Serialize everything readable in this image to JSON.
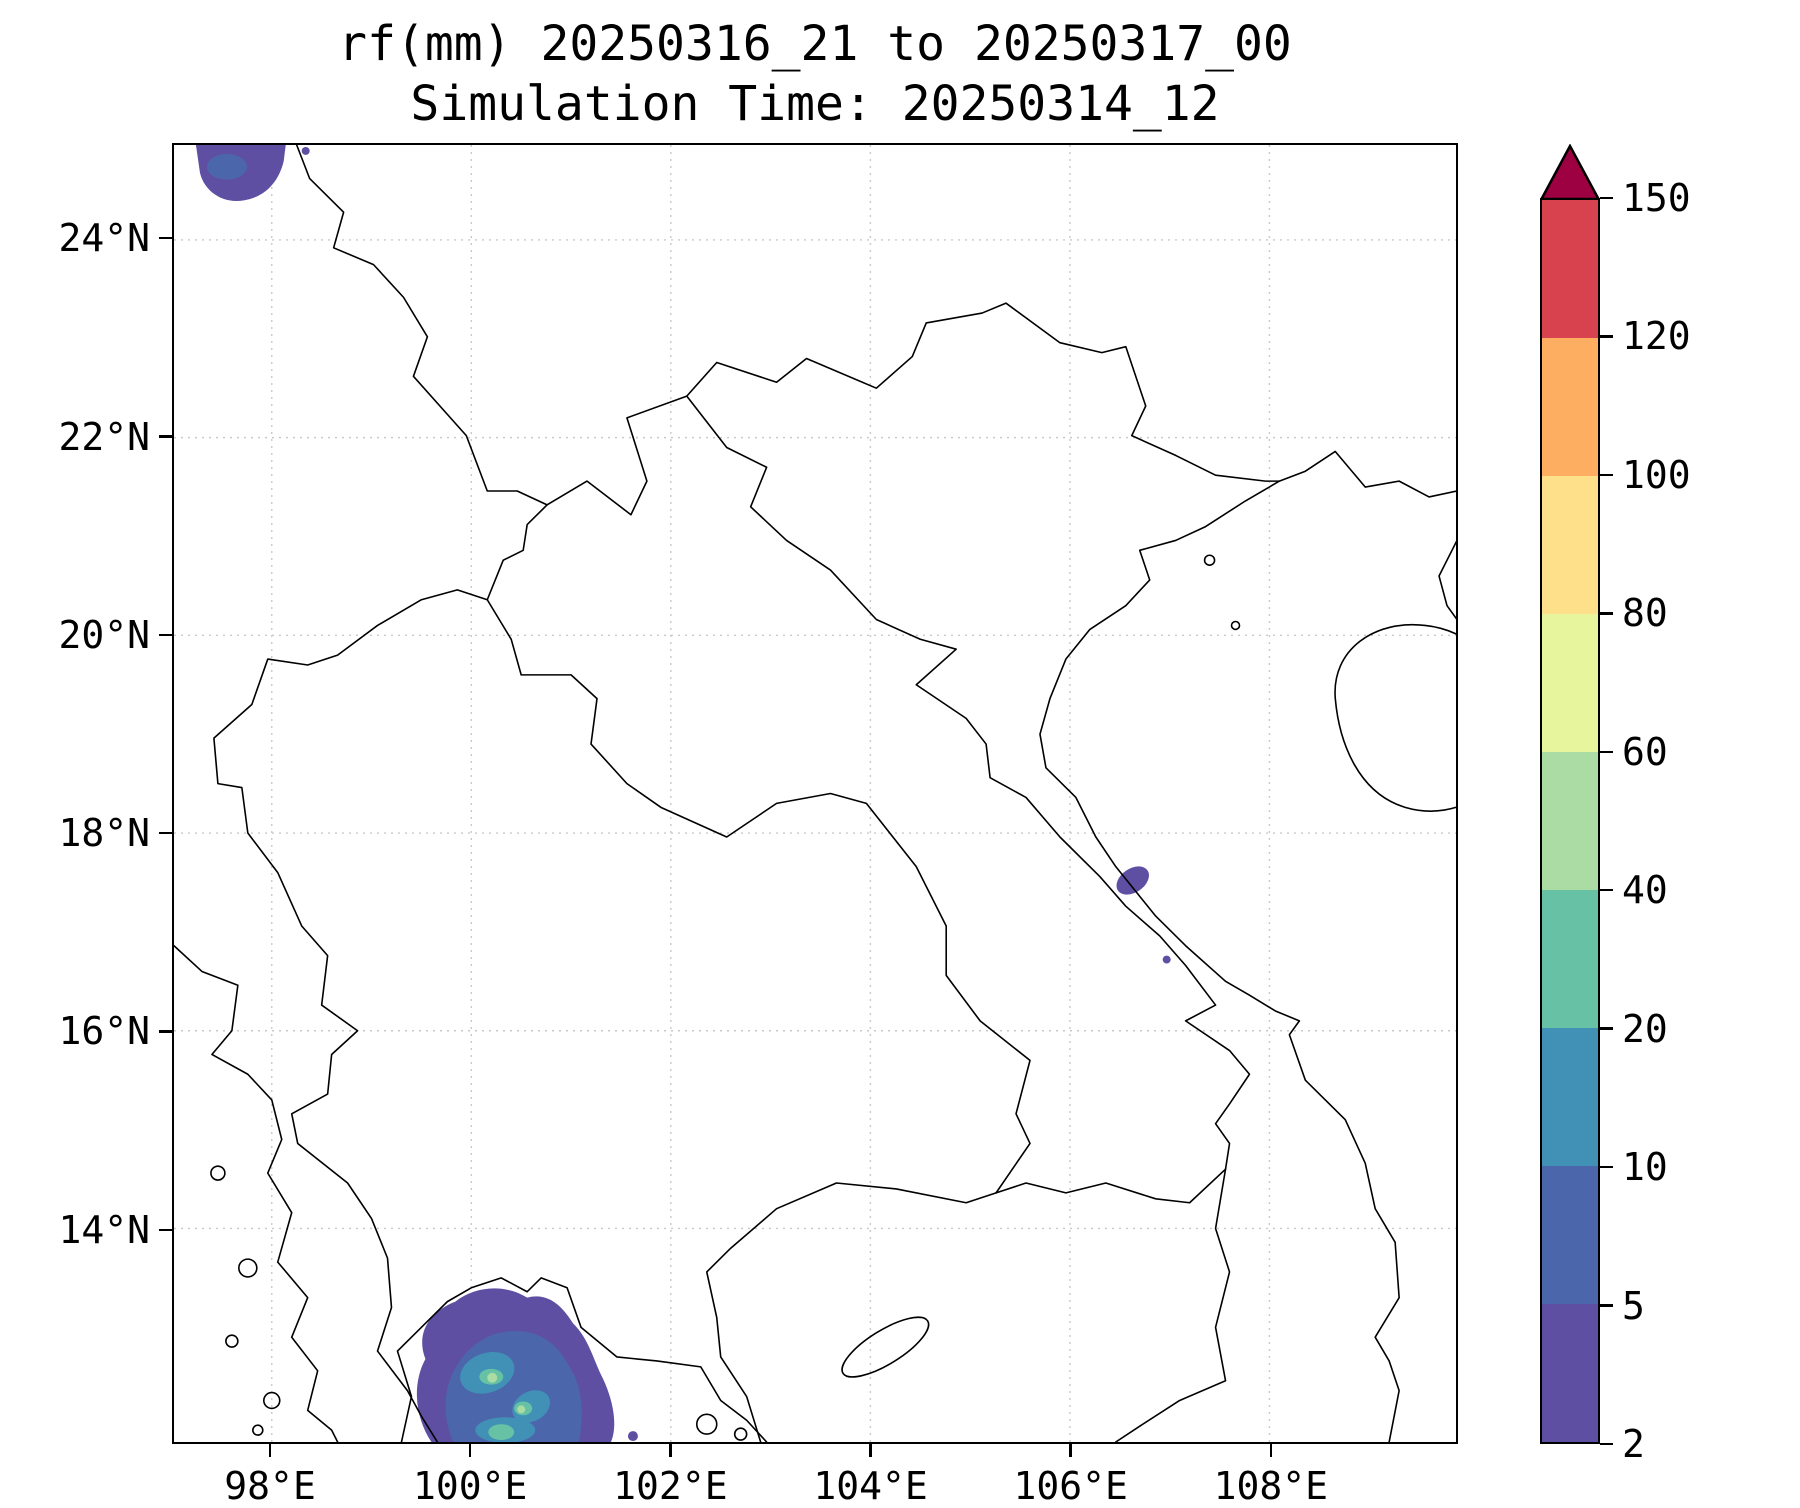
{
  "title": {
    "line1": "rf(mm) 20250316_21 to 20250317_00",
    "line2": "Simulation Time: 20250314_12"
  },
  "axes": {
    "extent": {
      "lon_min": 97.02,
      "lon_max": 109.87,
      "lat_min": 11.84,
      "lat_max": 24.96
    },
    "x_ticks": [
      {
        "lon": 98,
        "label": "98°E"
      },
      {
        "lon": 100,
        "label": "100°E"
      },
      {
        "lon": 102,
        "label": "102°E"
      },
      {
        "lon": 104,
        "label": "104°E"
      },
      {
        "lon": 106,
        "label": "106°E"
      },
      {
        "lon": 108,
        "label": "108°E"
      }
    ],
    "y_ticks": [
      {
        "lat": 24,
        "label": "24°N"
      },
      {
        "lat": 22,
        "label": "22°N"
      },
      {
        "lat": 20,
        "label": "20°N"
      },
      {
        "lat": 18,
        "label": "18°N"
      },
      {
        "lat": 16,
        "label": "16°N"
      },
      {
        "lat": 14,
        "label": "14°N"
      }
    ]
  },
  "colors": {
    "coastline": "#000000",
    "grid": "#c9c9c9",
    "background": "#ffffff"
  },
  "colorbar": {
    "levels": [
      2,
      5,
      10,
      20,
      40,
      60,
      80,
      100,
      120,
      150
    ],
    "tick_labels": [
      "2",
      "5",
      "10",
      "20",
      "40",
      "60",
      "80",
      "100",
      "120",
      "150"
    ],
    "colors": [
      "#5e4fa2",
      "#4c66ab",
      "#4191b6",
      "#67c1a5",
      "#aadca4",
      "#e7f59d",
      "#fee08b",
      "#fdae61",
      "#d7424e"
    ],
    "extend_color": "#9e0142"
  },
  "chart_data": {
    "type": "heatmap",
    "title": "rf(mm) 20250316_21 to 20250317_00",
    "subtitle": "Simulation Time: 20250314_12",
    "variable": "rainfall accumulation (mm)",
    "lon_range": [
      97.0,
      109.9
    ],
    "lat_range": [
      11.8,
      25.0
    ],
    "contour_levels_mm": [
      2,
      5,
      10,
      20,
      40,
      60,
      80,
      100,
      120,
      150
    ],
    "colorbar_extend": "max (dark red triangle above 150)",
    "rain_cells": [
      {
        "location": "far northwest, clipped at top edge",
        "lon": 97.7,
        "lat": 24.7,
        "peak_band_mm": "5-10"
      },
      {
        "location": "north-central Vietnam coast",
        "lon": 106.6,
        "lat": 17.5,
        "peak_band_mm": "2-5"
      },
      {
        "location": "upper Gulf of Thailand / SW Cambodia border",
        "lon": 100.4,
        "lat": 12.4,
        "extent_lon": [
          99.3,
          101.4
        ],
        "extent_lat": [
          11.8,
          13.3
        ],
        "peak_band_mm": "40-60",
        "embedded_bands_mm": [
          "5-10",
          "10-20",
          "20-40",
          "40-60"
        ]
      }
    ],
    "background_mm": "below 2 mm (no shading)"
  }
}
